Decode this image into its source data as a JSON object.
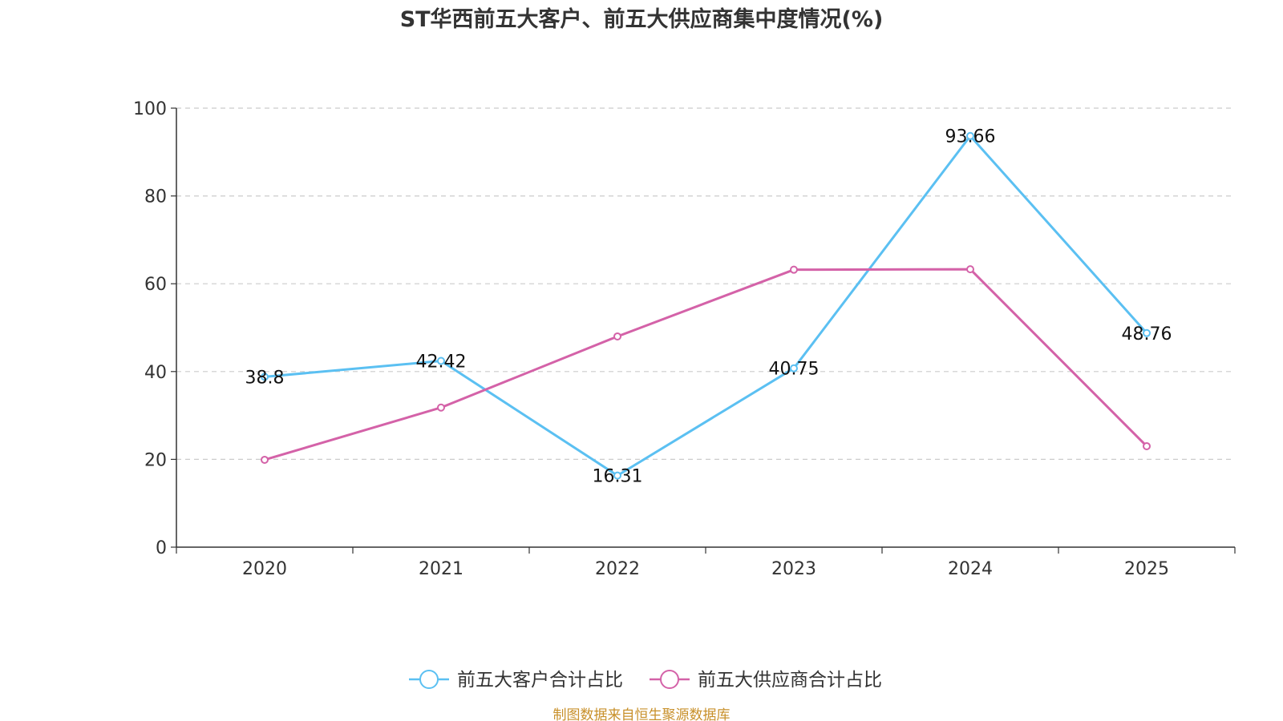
{
  "chart_data": {
    "type": "line",
    "title": "ST华西前五大客户、前五大供应商集中度情况(%)",
    "categories": [
      "2020",
      "2021",
      "2022",
      "2023",
      "2024",
      "2025"
    ],
    "ylim": [
      0,
      100
    ],
    "yticks": [
      0,
      20,
      40,
      60,
      80,
      100
    ],
    "grid": true,
    "legend_position": "bottom-center",
    "series": [
      {
        "name": "前五大客户合计占比",
        "color": "#5bc0f2",
        "values": [
          38.8,
          42.42,
          16.31,
          40.75,
          93.66,
          48.76
        ],
        "labels": [
          "38.8",
          "42.42",
          "16.31",
          "40.75",
          "93.66",
          "48.76"
        ]
      },
      {
        "name": "前五大供应商合计占比",
        "color": "#d462a8",
        "values": [
          19.9,
          31.8,
          48.0,
          63.2,
          63.3,
          23.0
        ],
        "labels": []
      }
    ],
    "source": "制图数据来自恒生聚源数据库",
    "source_color": "#c8902a"
  }
}
